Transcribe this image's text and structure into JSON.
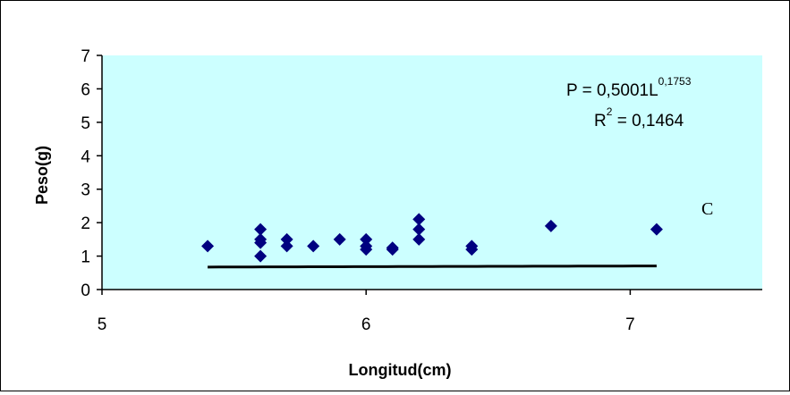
{
  "chart_data": {
    "type": "scatter",
    "title": "",
    "xlabel": "Longitud(cm)",
    "ylabel": "Peso(g)",
    "xlim": [
      5,
      7.5
    ],
    "ylim": [
      0,
      7
    ],
    "x_ticks": [
      "5",
      "6",
      "7"
    ],
    "y_ticks": [
      "0",
      "1",
      "2",
      "3",
      "4",
      "5",
      "6",
      "7"
    ],
    "grid": false,
    "background_color": "#ccffff",
    "marker_color": "#000080",
    "marker": "diamond",
    "trendline_color": "#000000",
    "series": [
      {
        "points": [
          [
            5.4,
            1.3
          ],
          [
            5.6,
            1.0
          ],
          [
            5.6,
            1.4
          ],
          [
            5.6,
            1.5
          ],
          [
            5.6,
            1.8
          ],
          [
            5.7,
            1.3
          ],
          [
            5.7,
            1.5
          ],
          [
            5.8,
            1.3
          ],
          [
            5.9,
            1.5
          ],
          [
            6.0,
            1.2
          ],
          [
            6.0,
            1.3
          ],
          [
            6.0,
            1.5
          ],
          [
            6.1,
            1.2
          ],
          [
            6.1,
            1.25
          ],
          [
            6.2,
            1.5
          ],
          [
            6.2,
            1.8
          ],
          [
            6.2,
            2.1
          ],
          [
            6.4,
            1.2
          ],
          [
            6.4,
            1.3
          ],
          [
            6.7,
            1.9
          ],
          [
            7.1,
            1.8
          ]
        ]
      }
    ],
    "trendline": {
      "type": "power",
      "coefficient": 0.5001,
      "exponent": 0.1753,
      "x_range": [
        5.4,
        7.1
      ]
    },
    "annotations": {
      "equation_base": "P = 0,5001L",
      "equation_exp": "0,1753",
      "r2_base": "R",
      "r2_exp": "2",
      "r2_value": " = 0,1464",
      "panel_label": "C"
    }
  }
}
